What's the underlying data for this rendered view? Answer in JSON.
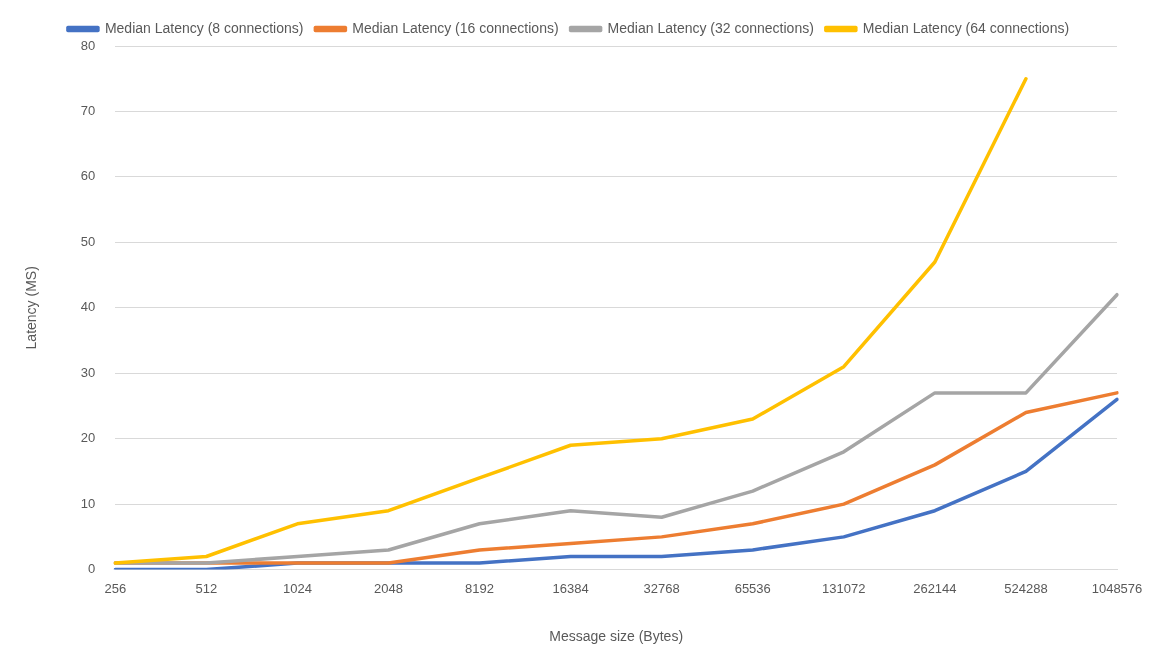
{
  "chart_data": {
    "type": "line",
    "xlabel": "Message size (Bytes)",
    "ylabel": "Latency (MS)",
    "categories": [
      "256",
      "512",
      "1024",
      "2048",
      "8192",
      "16384",
      "32768",
      "65536",
      "131072",
      "262144",
      "524288",
      "1048576"
    ],
    "series": [
      {
        "name": "Median Latency (8 connections)",
        "color": "#4472c4",
        "values": [
          0,
          0,
          1,
          1,
          1,
          2,
          2,
          3,
          5,
          9,
          15,
          26
        ]
      },
      {
        "name": "Median Latency (16 connections)",
        "color": "#ed7d31",
        "values": [
          1,
          1,
          1,
          1,
          3,
          4,
          5,
          7,
          10,
          16,
          24,
          27
        ]
      },
      {
        "name": "Median Latency (32 connections)",
        "color": "#a5a5a5",
        "values": [
          1,
          1,
          2,
          3,
          7,
          9,
          8,
          12,
          18,
          27,
          27,
          42
        ]
      },
      {
        "name": "Median Latency (64 connections)",
        "color": "#ffc000",
        "values": [
          1,
          2,
          7,
          9,
          14,
          19,
          20,
          23,
          31,
          47,
          75,
          null
        ]
      }
    ],
    "ylim": [
      0,
      80
    ],
    "yticks": [
      0,
      10,
      20,
      30,
      40,
      50,
      60,
      70,
      80
    ],
    "grid": "y",
    "legend": "top",
    "marker": "none",
    "line_style": "solid"
  }
}
